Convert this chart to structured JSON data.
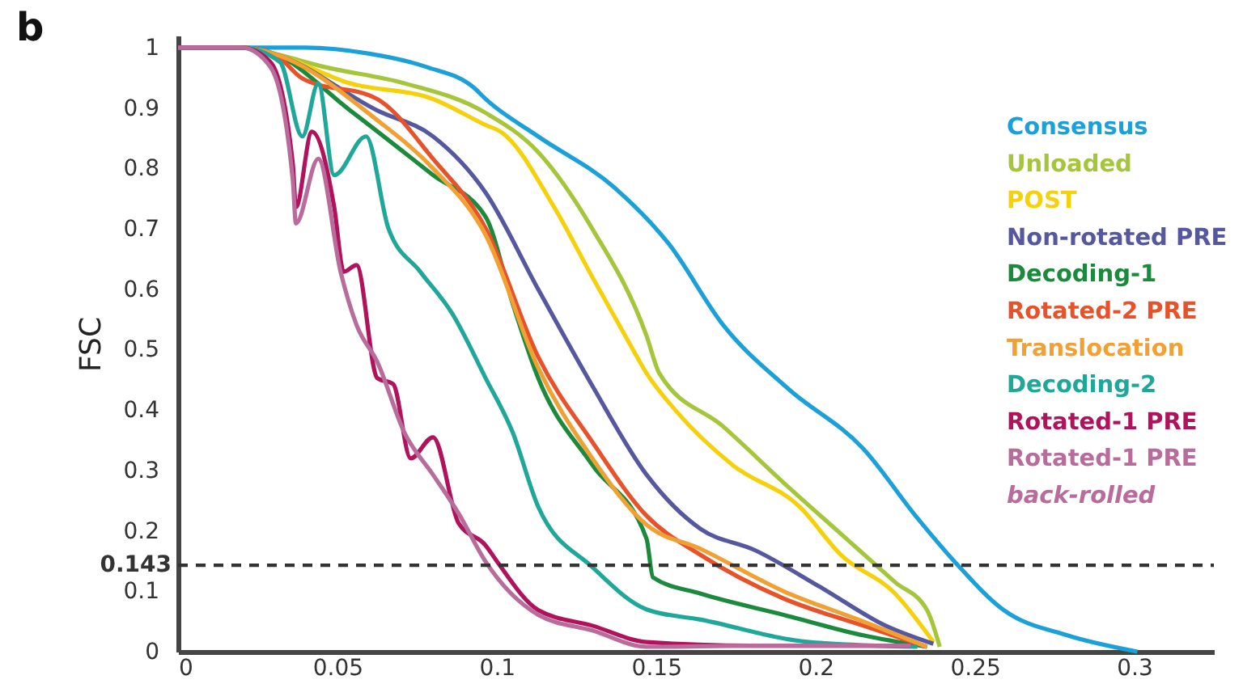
{
  "chart_data": {
    "type": "line",
    "title": "b",
    "ylabel": "FSC",
    "xlim": [
      0,
      0.325
    ],
    "ylim": [
      0,
      1.02
    ],
    "xticks": [
      0,
      0.05,
      0.1,
      0.15,
      0.2,
      0.25,
      0.3
    ],
    "yticks": [
      0,
      0.1,
      0.2,
      0.3,
      0.4,
      0.5,
      0.6,
      0.7,
      0.8,
      0.9,
      1
    ],
    "grid": false,
    "legend": "right",
    "marker": "none",
    "line_style": "solid",
    "ref_lines": [
      {
        "axis": "y",
        "value": 0.143,
        "label": "0.143",
        "color": "#333333",
        "line_style": "dashed"
      }
    ],
    "series": [
      {
        "name": "Consensus",
        "color": "#1ba1d8",
        "x": [
          0,
          0.02,
          0.04,
          0.06,
          0.078,
          0.093,
          0.0965,
          0.113,
          0.137,
          0.154,
          0.171,
          0.1915,
          0.215,
          0.232,
          0.244,
          0.259,
          0.279,
          0.301
        ],
        "values": [
          1,
          1,
          1,
          0.99,
          0.968,
          0.933,
          0.915,
          0.853,
          0.768,
          0.675,
          0.541,
          0.435,
          0.336,
          0.221,
          0.147,
          0.069,
          0.027,
          0
        ]
      },
      {
        "name": "Unloaded",
        "color": "#a5c63b",
        "x": [
          0,
          0.02,
          0.03,
          0.046,
          0.071,
          0.0965,
          0.113,
          0.13,
          0.147,
          0.151,
          0.171,
          0.191,
          0.208,
          0.225,
          0.235,
          0.239
        ],
        "values": [
          1,
          1,
          0.99,
          0.968,
          0.941,
          0.892,
          0.827,
          0.7,
          0.523,
          0.461,
          0.373,
          0.275,
          0.195,
          0.115,
          0.069,
          0.008
        ]
      },
      {
        "name": "POST",
        "color": "#f5d10c",
        "x": [
          0,
          0.02,
          0.03,
          0.054,
          0.08,
          0.0965,
          0.1015,
          0.118,
          0.13,
          0.142,
          0.147,
          0.156,
          0.174,
          0.195,
          0.208,
          0.225,
          0.237
        ],
        "values": [
          1,
          1,
          0.99,
          0.941,
          0.915,
          0.872,
          0.86,
          0.736,
          0.62,
          0.507,
          0.461,
          0.4,
          0.309,
          0.24,
          0.16,
          0.096,
          0.016
        ]
      },
      {
        "name": "Non-rotated PRE",
        "color": "#56589f",
        "x": [
          0,
          0.02,
          0.03,
          0.0625,
          0.08,
          0.0965,
          0.113,
          0.13,
          0.147,
          0.164,
          0.181,
          0.2015,
          0.222,
          0.237
        ],
        "values": [
          1,
          1,
          0.99,
          0.896,
          0.853,
          0.76,
          0.6,
          0.44,
          0.293,
          0.203,
          0.168,
          0.107,
          0.043,
          0.013
        ]
      },
      {
        "name": "Decoding-1",
        "color": "#1b8a3c",
        "x": [
          0,
          0.02,
          0.03,
          0.054,
          0.08,
          0.0965,
          0.105,
          0.113,
          0.13,
          0.147,
          0.149,
          0.164,
          0.19,
          0.215,
          0.235
        ],
        "values": [
          1,
          1,
          0.99,
          0.896,
          0.789,
          0.72,
          0.576,
          0.453,
          0.309,
          0.187,
          0.123,
          0.096,
          0.061,
          0.027,
          0.008
        ]
      },
      {
        "name": "Rotated-2 PRE",
        "color": "#e8522b",
        "x": [
          0,
          0.02,
          0.03,
          0.039,
          0.0625,
          0.08,
          0.0965,
          0.113,
          0.13,
          0.147,
          0.164,
          0.19,
          0.215,
          0.235
        ],
        "values": [
          1,
          1,
          0.99,
          0.949,
          0.915,
          0.816,
          0.701,
          0.488,
          0.347,
          0.225,
          0.16,
          0.088,
          0.043,
          0.008
        ]
      },
      {
        "name": "Translocation",
        "color": "#f1a133",
        "x": [
          0,
          0.02,
          0.03,
          0.0625,
          0.08,
          0.0965,
          0.113,
          0.13,
          0.147,
          0.164,
          0.19,
          0.215,
          0.235
        ],
        "values": [
          1,
          1,
          0.99,
          0.88,
          0.8,
          0.69,
          0.47,
          0.32,
          0.21,
          0.17,
          0.1,
          0.05,
          0.008
        ]
      },
      {
        "name": "Decoding-2",
        "color": "#1fa899",
        "x": [
          0,
          0.02,
          0.032,
          0.039,
          0.044,
          0.049,
          0.059,
          0.066,
          0.076,
          0.086,
          0.0965,
          0.105,
          0.113,
          0.13,
          0.147,
          0.164,
          0.198,
          0.232
        ],
        "values": [
          1,
          1,
          0.976,
          0.853,
          0.941,
          0.789,
          0.853,
          0.701,
          0.629,
          0.56,
          0.453,
          0.363,
          0.24,
          0.14,
          0.07,
          0.053,
          0.016,
          0.008
        ]
      },
      {
        "name": "Rotated-1 PRE",
        "color": "#b0125c",
        "x": [
          0,
          0.02,
          0.029,
          0.036,
          0.037,
          0.042,
          0.049,
          0.052,
          0.056,
          0.0625,
          0.0675,
          0.073,
          0.08,
          0.088,
          0.0965,
          0.1,
          0.113,
          0.13,
          0.147,
          0.18,
          0.23
        ],
        "values": [
          1,
          1,
          0.976,
          0.808,
          0.736,
          0.861,
          0.736,
          0.629,
          0.64,
          0.453,
          0.443,
          0.32,
          0.355,
          0.213,
          0.176,
          0.15,
          0.069,
          0.043,
          0.016,
          0.01,
          0.01
        ]
      },
      {
        "name": "Rotated-1 PRE\nback-rolled",
        "color": "#b86c9b",
        "x": [
          0,
          0.02,
          0.029,
          0.036,
          0.037,
          0.044,
          0.051,
          0.056,
          0.0625,
          0.071,
          0.08,
          0.088,
          0.0965,
          0.113,
          0.13,
          0.147,
          0.18,
          0.23
        ],
        "values": [
          1,
          1,
          0.968,
          0.781,
          0.709,
          0.816,
          0.629,
          0.541,
          0.48,
          0.363,
          0.293,
          0.229,
          0.149,
          0.061,
          0.035,
          0.008,
          0.01,
          0.01
        ]
      }
    ]
  }
}
